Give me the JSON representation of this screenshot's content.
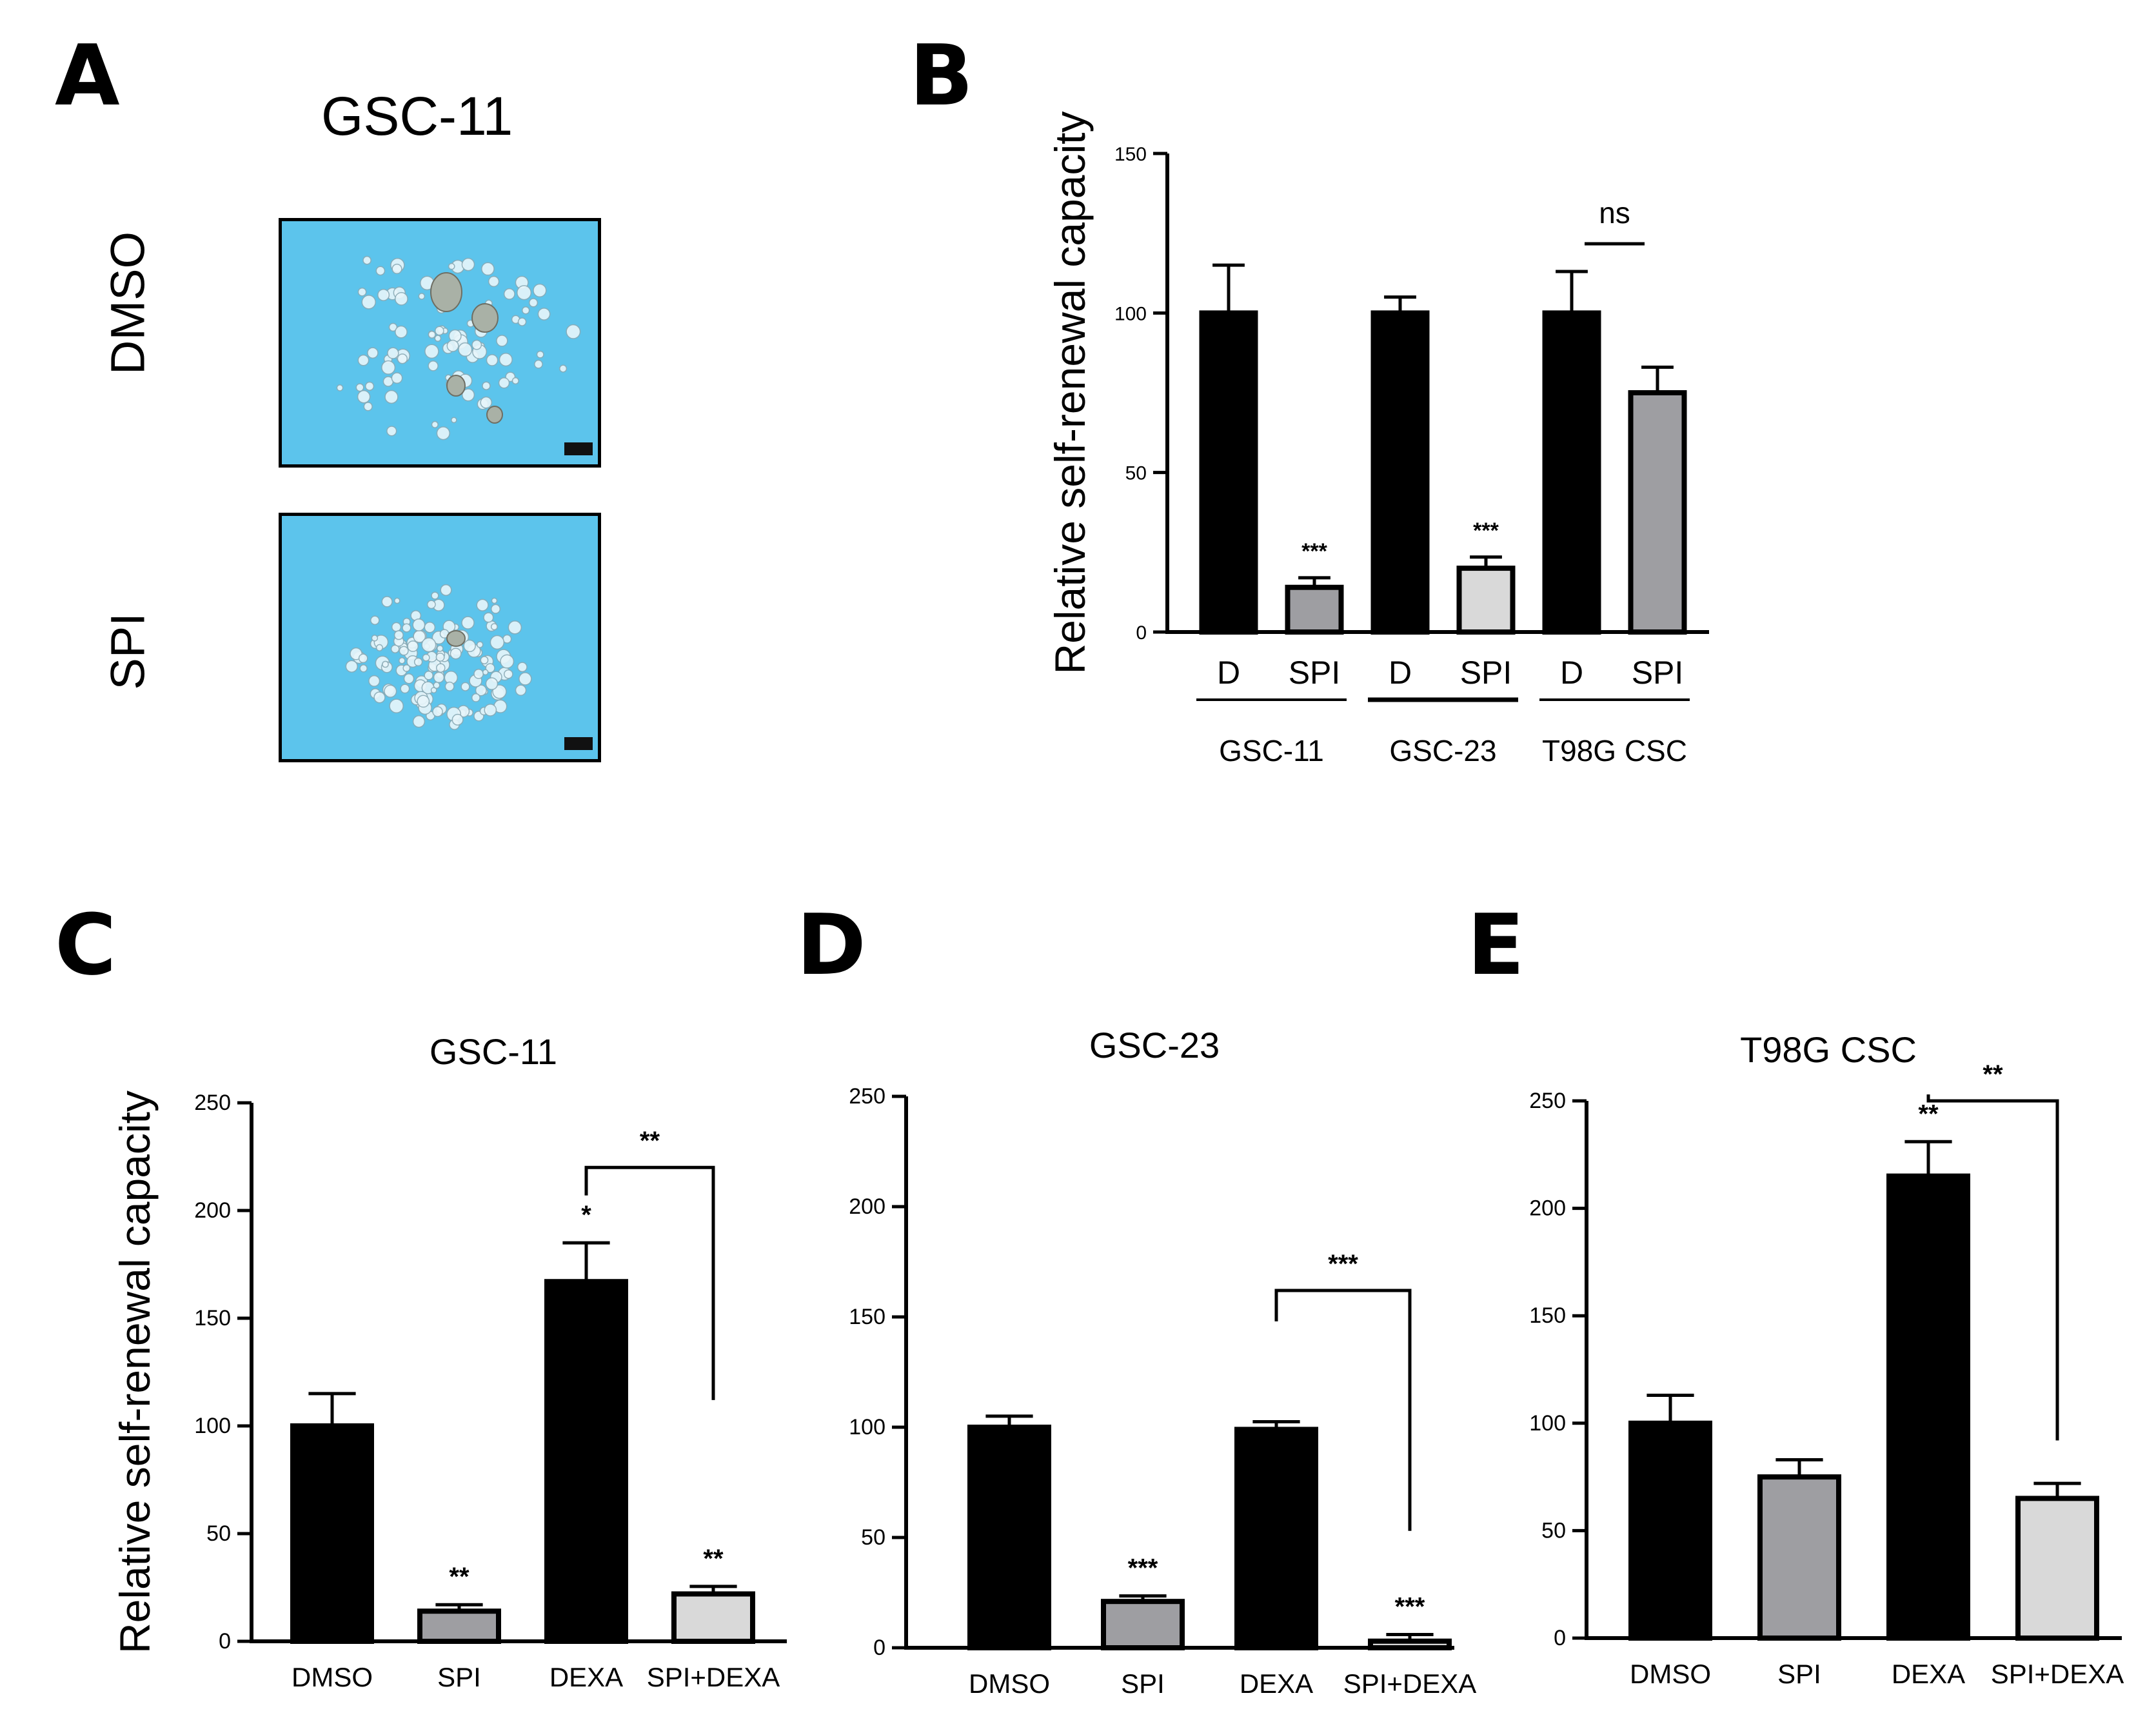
{
  "panel_a": {
    "letter": "A",
    "title": "GSC-11",
    "rows": [
      {
        "label": "DMSO",
        "image": "dmso-spheres"
      },
      {
        "label": "SPI",
        "image": "spi-spheres"
      }
    ]
  },
  "panel_labels": {
    "b": "B",
    "c": "C",
    "d": "D",
    "e": "E"
  },
  "chart_data": [
    {
      "id": "B",
      "type": "bar",
      "title": "",
      "ylabel": "Relative self-renewal capacity",
      "ylim": [
        0,
        150
      ],
      "yticks": [
        0,
        50,
        100,
        150
      ],
      "categories": [
        "D",
        "SPI",
        "D",
        "SPI",
        "D",
        "SPI"
      ],
      "groups": [
        "GSC-11",
        "GSC-23",
        "T98G CSC"
      ],
      "values": [
        100,
        14,
        100,
        20,
        100,
        75
      ],
      "errors": [
        15,
        3,
        5,
        3.5,
        13,
        8
      ],
      "fills": [
        "#000000",
        "#9e9ea2",
        "#000000",
        "#d9d9d9",
        "#000000",
        "#9e9ea2"
      ],
      "stars": [
        "",
        "***",
        "",
        "***",
        "",
        ""
      ],
      "brackets": [
        {
          "from": 4,
          "to": 5,
          "label": "ns",
          "style": "line"
        }
      ]
    },
    {
      "id": "C",
      "type": "bar",
      "title": "GSC-11",
      "ylabel": "Relative self-renewal capacity",
      "ylim": [
        0,
        250
      ],
      "yticks": [
        0,
        50,
        100,
        150,
        200,
        250
      ],
      "categories": [
        "DMSO",
        "SPI",
        "DEXA",
        "SPI+DEXA"
      ],
      "values": [
        100,
        14,
        167,
        22
      ],
      "errors": [
        15,
        3,
        18,
        3.5
      ],
      "fills": [
        "#000000",
        "#9e9ea2",
        "#000000",
        "#d9d9d9"
      ],
      "stars": [
        "",
        "**",
        "*",
        "**"
      ],
      "brackets": [
        {
          "from": 2,
          "to": 3,
          "label": "**",
          "top": 220,
          "right_end": 112
        }
      ]
    },
    {
      "id": "D",
      "type": "bar",
      "title": "GSC-23",
      "ylabel": "",
      "ylim": [
        0,
        250
      ],
      "yticks": [
        0,
        50,
        100,
        150,
        200,
        250
      ],
      "categories": [
        "DMSO",
        "SPI",
        "DEXA",
        "SPI+DEXA"
      ],
      "values": [
        100,
        21,
        99,
        3
      ],
      "errors": [
        5,
        2.5,
        3.5,
        3
      ],
      "fills": [
        "#000000",
        "#9e9ea2",
        "#000000",
        "#d9d9d9"
      ],
      "stars": [
        "",
        "***",
        "",
        "***"
      ],
      "brackets": [
        {
          "from": 2,
          "to": 3,
          "label": "***",
          "top": 162,
          "left_end": 148,
          "right_end": 53
        }
      ]
    },
    {
      "id": "E",
      "type": "bar",
      "title": "T98G CSC",
      "ylabel": "",
      "ylim": [
        0,
        250
      ],
      "yticks": [
        0,
        50,
        100,
        150,
        200,
        250
      ],
      "categories": [
        "DMSO",
        "SPI",
        "DEXA",
        "SPI+DEXA"
      ],
      "values": [
        100,
        75,
        215,
        65
      ],
      "errors": [
        13,
        8,
        16,
        7
      ],
      "fills": [
        "#000000",
        "#9e9ea2",
        "#000000",
        "#d9d9d9"
      ],
      "stars": [
        "",
        "",
        "**",
        ""
      ],
      "brackets": [
        {
          "from": 2,
          "to": 3,
          "label": "**",
          "top": 250,
          "right_end": 92
        }
      ]
    }
  ]
}
